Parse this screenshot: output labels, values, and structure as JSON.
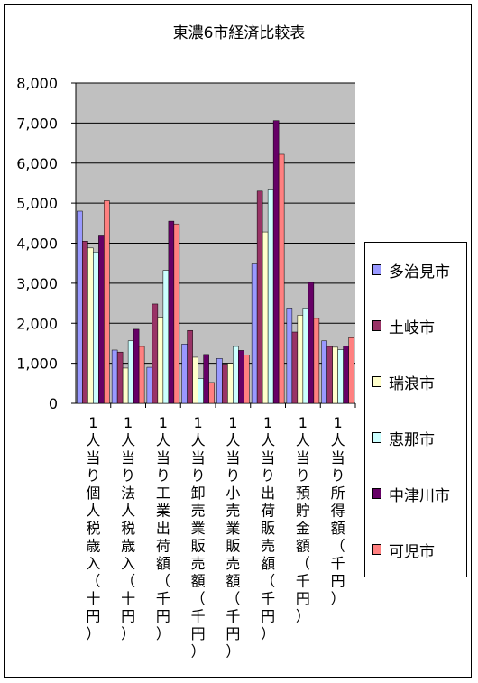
{
  "chart_data": {
    "type": "bar",
    "title": "東濃6市経済比較表",
    "ylim": [
      0,
      8000
    ],
    "yticks": [
      "8,000",
      "7,000",
      "6,000",
      "5,000",
      "4,000",
      "3,000",
      "2,000",
      "1,000",
      "0"
    ],
    "grid": true,
    "legend_position": "right",
    "categories": [
      "1人当り個人税歳入（十円）",
      "1人当り法人税歳入（十円）",
      "1人当り工業出荷額（千円）",
      "1人当り卸売業販売額（千円）",
      "1人当り小売業販売額（千円）",
      "1人当り出荷販売額（千円）",
      "1人当り預貯金額（千円）",
      "1人当り所得額（千円）"
    ],
    "series": [
      {
        "name": "多治見市",
        "color": "#9999ff",
        "values": [
          4800,
          1330,
          900,
          1480,
          1120,
          3480,
          2380,
          1560
        ]
      },
      {
        "name": "土岐市",
        "color": "#993366",
        "values": [
          4050,
          1280,
          2480,
          1820,
          980,
          5300,
          1780,
          1420
        ]
      },
      {
        "name": "瑞浪市",
        "color": "#ffffcc",
        "values": [
          3880,
          880,
          2150,
          1150,
          1000,
          4280,
          2200,
          1400
        ]
      },
      {
        "name": "恵那市",
        "color": "#ccffff",
        "values": [
          3780,
          1560,
          3320,
          620,
          1420,
          5330,
          2380,
          1340
        ]
      },
      {
        "name": "中津川市",
        "color": "#660066",
        "values": [
          4180,
          1850,
          4550,
          1220,
          1320,
          7060,
          3020,
          1430
        ]
      },
      {
        "name": "可児市",
        "color": "#ff8080",
        "values": [
          5060,
          1420,
          4480,
          520,
          1200,
          6220,
          2120,
          1640
        ]
      }
    ]
  }
}
